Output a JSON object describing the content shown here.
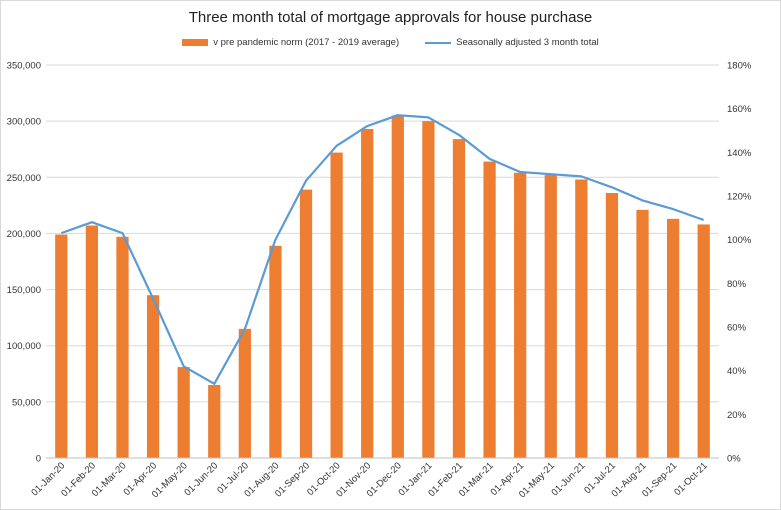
{
  "chart_data": {
    "type": "bar",
    "title": "Three month total of mortgage approvals for house purchase",
    "categories": [
      "01-Jan-20",
      "01-Feb-20",
      "01-Mar-20",
      "01-Apr-20",
      "01-May-20",
      "01-Jun-20",
      "01-Jul-20",
      "01-Aug-20",
      "01-Sep-20",
      "01-Oct-20",
      "01-Nov-20",
      "01-Dec-20",
      "01-Jan-21",
      "01-Feb-21",
      "01-Mar-21",
      "01-Apr-21",
      "01-May-21",
      "01-Jun-21",
      "01-Jul-21",
      "01-Aug-21",
      "01-Sep-21",
      "01-Oct-21"
    ],
    "series": [
      {
        "name": "v pre pandemic norm (2017 - 2019 average)",
        "type": "bar",
        "axis": "left",
        "color": "#ED7D31",
        "values": [
          199000,
          207000,
          197000,
          145000,
          81000,
          65000,
          115000,
          189000,
          239000,
          272000,
          293000,
          305000,
          300000,
          284000,
          264000,
          254000,
          252000,
          248000,
          236000,
          221000,
          213000,
          208000
        ]
      },
      {
        "name": "Seasonally adjusted 3 month total",
        "type": "line",
        "axis": "right",
        "color": "#5B9BD5",
        "values": [
          103,
          108,
          103,
          73,
          42,
          34,
          59,
          100,
          127,
          143,
          152,
          157,
          156,
          148,
          137,
          131,
          130,
          129,
          124,
          118,
          114,
          109
        ]
      }
    ],
    "y_left": {
      "range": [
        0,
        350000
      ],
      "ticks": [
        "0",
        "50,000",
        "100,000",
        "150,000",
        "200,000",
        "250,000",
        "300,000",
        "350,000"
      ]
    },
    "y_right": {
      "range": [
        0,
        180
      ],
      "ticks": [
        "0%",
        "20%",
        "40%",
        "60%",
        "80%",
        "100%",
        "120%",
        "140%",
        "160%",
        "180%"
      ]
    },
    "grid": true,
    "legend_position": "top"
  }
}
